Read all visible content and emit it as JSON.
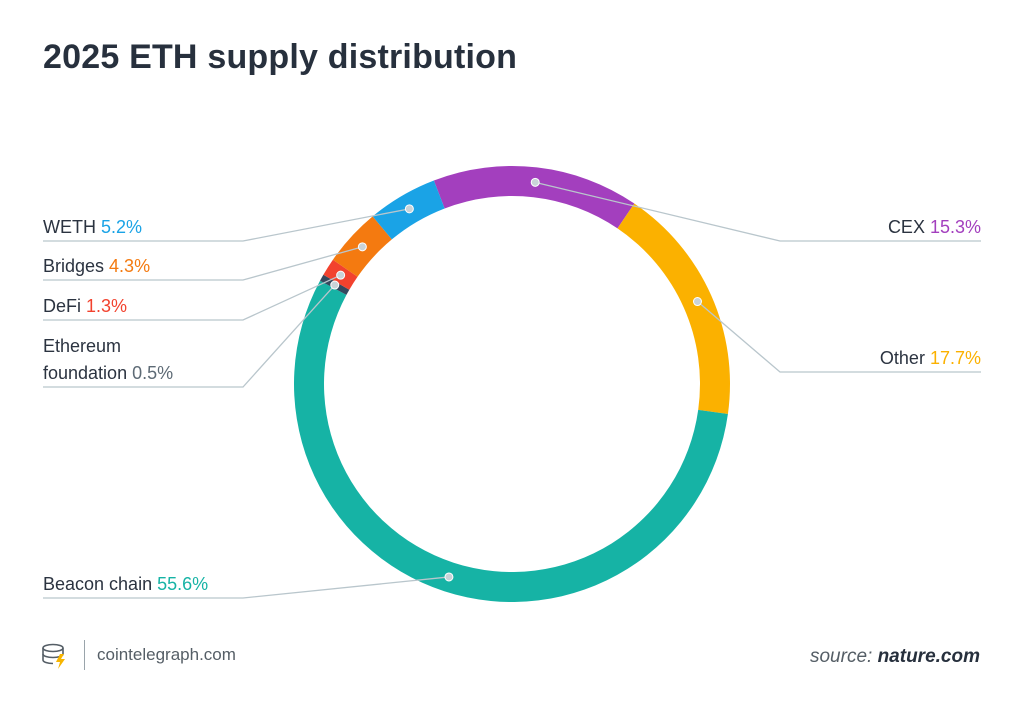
{
  "title": "2025 ETH supply distribution",
  "colors": {
    "beacon": "#16b3a5",
    "other": "#fbb100",
    "cex": "#a33fbe",
    "weth": "#1aa3e6",
    "bridges": "#f47a10",
    "defi": "#f2422e",
    "foundation": "#34495e",
    "text": "#2b3340"
  },
  "chart_data": {
    "type": "pie",
    "title": "2025 ETH supply distribution",
    "donut": true,
    "slices": [
      {
        "key": "cex",
        "name": "CEX",
        "value": 15.3,
        "label": "15.3%"
      },
      {
        "key": "other",
        "name": "Other",
        "value": 17.7,
        "label": "17.7%"
      },
      {
        "key": "beacon",
        "name": "Beacon chain",
        "value": 55.6,
        "label": "55.6%"
      },
      {
        "key": "foundation",
        "name": "Ethereum foundation",
        "value": 0.5,
        "label": "0.5%"
      },
      {
        "key": "defi",
        "name": "DeFi",
        "value": 1.3,
        "label": "1.3%"
      },
      {
        "key": "bridges",
        "name": "Bridges",
        "value": 4.3,
        "label": "4.3%"
      },
      {
        "key": "weth",
        "name": "WETH",
        "value": 5.2,
        "label": "5.2%"
      }
    ]
  },
  "footer": {
    "brand": "cointelegraph.com",
    "source_prefix": "source:",
    "source_name": "nature.com"
  },
  "icons": {
    "brand": "cointelegraph-logo-icon"
  }
}
